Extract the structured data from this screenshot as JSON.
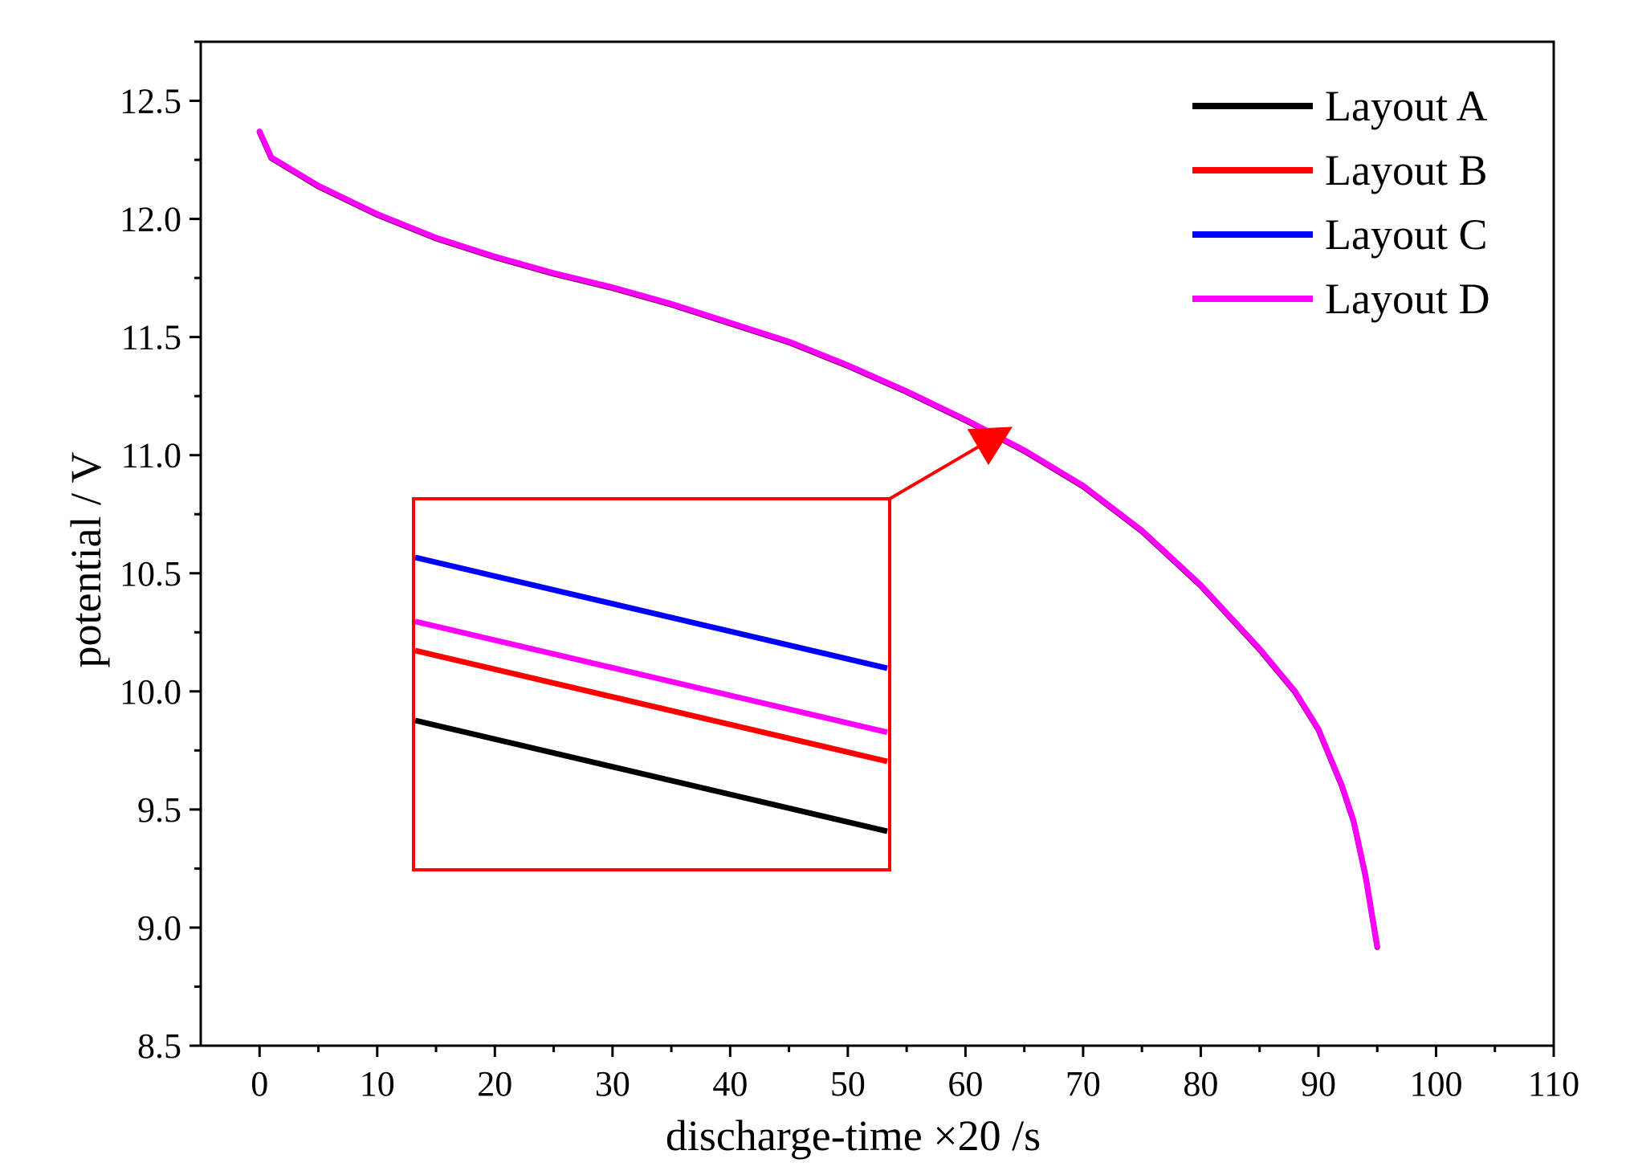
{
  "chart_data": {
    "type": "line",
    "title": "",
    "xlabel": "discharge-time ×20 /s",
    "ylabel": "potential / V",
    "xlim": [
      -5,
      110
    ],
    "ylim": [
      8.5,
      12.75
    ],
    "x_ticks": [
      0,
      10,
      20,
      30,
      40,
      50,
      60,
      70,
      80,
      90,
      100,
      110
    ],
    "x_tick_labels": [
      "0",
      "10",
      "20",
      "30",
      "40",
      "50",
      "60",
      "70",
      "80",
      "90",
      "100",
      "110"
    ],
    "y_ticks": [
      8.5,
      9.0,
      9.5,
      10.0,
      10.5,
      11.0,
      11.5,
      12.0,
      12.5
    ],
    "y_tick_labels": [
      "8.5",
      "9.0",
      "9.5",
      "10.0",
      "10.5",
      "11.0",
      "11.5",
      "12.0",
      "12.5"
    ],
    "grid": false,
    "legend_position": "top-right",
    "series": [
      {
        "name": "Layout A",
        "color": "#000000"
      },
      {
        "name": "Layout B",
        "color": "#ff0000"
      },
      {
        "name": "Layout C",
        "color": "#0000ff"
      },
      {
        "name": "Layout D",
        "color": "#ff00ff"
      }
    ],
    "x": [
      0,
      1,
      5,
      10,
      15,
      20,
      25,
      30,
      35,
      40,
      45,
      50,
      55,
      60,
      65,
      70,
      75,
      80,
      85,
      88,
      90,
      92,
      93,
      94,
      95
    ],
    "y": [
      12.37,
      12.26,
      12.14,
      12.02,
      11.92,
      11.84,
      11.77,
      11.71,
      11.64,
      11.56,
      11.48,
      11.38,
      11.27,
      11.15,
      11.02,
      10.87,
      10.68,
      10.45,
      10.18,
      10.0,
      9.84,
      9.6,
      9.45,
      9.22,
      8.92
    ],
    "inset": {
      "description_series_order": [
        "Layout C",
        "Layout D",
        "Layout B",
        "Layout A"
      ],
      "relative_offsets": [
        0,
        -0.55,
        -0.8,
        -1.4
      ],
      "zoom_target": {
        "x": 64,
        "y": 11.12
      }
    },
    "colors": {
      "zoom_box": "#ff0000",
      "axis": "#000000"
    }
  }
}
